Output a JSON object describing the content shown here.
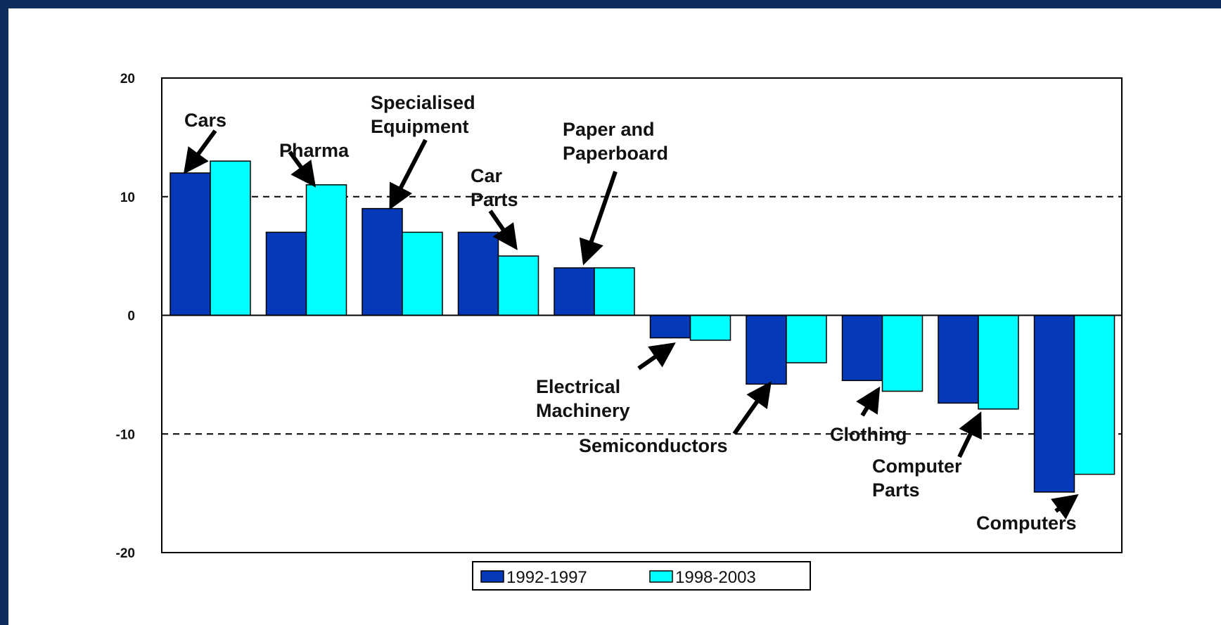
{
  "colors": {
    "background_frame": "#0f2d5c",
    "series_1": "#0539b8",
    "series_2": "#00ffff"
  },
  "chart_data": {
    "type": "bar",
    "categories": [
      "Cars",
      "Pharma",
      "Specialised Equipment",
      "Car Parts",
      "Paper and Paperboard",
      "Electrical Machinery",
      "Semiconductors",
      "Clothing",
      "Computer Parts",
      "Computers"
    ],
    "series": [
      {
        "name": "1992-1997",
        "values": [
          12,
          7,
          9,
          7,
          4,
          -1.9,
          -5.8,
          -5.5,
          -7.4,
          -14.9
        ]
      },
      {
        "name": "1998-2003",
        "values": [
          13,
          11,
          7,
          5,
          4,
          -2.1,
          -4,
          -6.4,
          -7.9,
          -13.4
        ]
      }
    ],
    "yticks": [
      "20",
      "10",
      "0",
      "-10",
      "-20"
    ],
    "ylim": [
      -20,
      20
    ],
    "gridlines": [
      10,
      -10
    ],
    "legend_position": "bottom-center",
    "annotations": [
      {
        "lines": [
          "Cars"
        ],
        "category": "Cars"
      },
      {
        "lines": [
          "Pharma"
        ],
        "category": "Pharma"
      },
      {
        "lines": [
          "Specialised",
          "Equipment"
        ],
        "category": "Specialised Equipment"
      },
      {
        "lines": [
          "Car",
          "Parts"
        ],
        "category": "Car Parts"
      },
      {
        "lines": [
          "Paper and",
          "Paperboard"
        ],
        "category": "Paper and Paperboard"
      },
      {
        "lines": [
          "Electrical",
          "Machinery"
        ],
        "category": "Electrical Machinery"
      },
      {
        "lines": [
          "Semiconductors"
        ],
        "category": "Semiconductors"
      },
      {
        "lines": [
          "Clothing"
        ],
        "category": "Clothing"
      },
      {
        "lines": [
          "Computer",
          "Parts"
        ],
        "category": "Computer Parts"
      },
      {
        "lines": [
          "Computers"
        ],
        "category": "Computers"
      }
    ]
  }
}
